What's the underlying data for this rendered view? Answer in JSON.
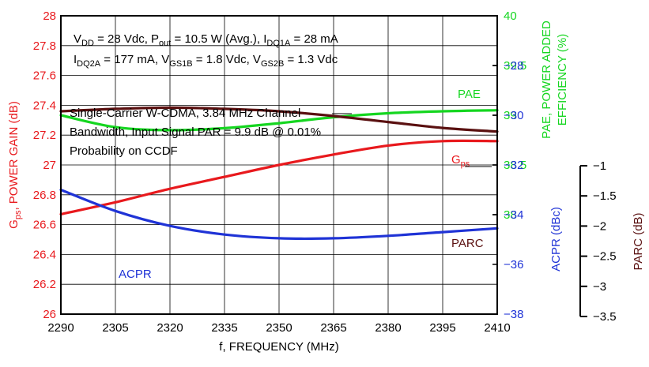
{
  "colors": {
    "gain": "#e8191d",
    "pae": "#15d620",
    "acpr": "#1f33d6",
    "parc": "#5a1010",
    "axis": "#000000",
    "grid": "#000000"
  },
  "chart_data": {
    "type": "line",
    "xlabel": "f, FREQUENCY (MHz)",
    "x_ticks": [
      "2290",
      "2305",
      "2320",
      "2335",
      "2350",
      "2365",
      "2380",
      "2395",
      "2410"
    ],
    "xlim": [
      2290,
      2410
    ],
    "axes": {
      "gain": {
        "label_main": "G",
        "label_sub": "ps",
        "label_rest": ", POWER GAIN (dB)",
        "ylim": [
          26,
          28
        ],
        "ticks": [
          "26",
          "26.2",
          "26.4",
          "26.6",
          "26.8",
          "27",
          "27.2",
          "27.4",
          "27.6",
          "27.8",
          "28"
        ]
      },
      "pae": {
        "label_line1": "PAE, POWER ADDED",
        "label_line2": "EFFICIENCY (%)",
        "ylim": [
          37,
          40
        ],
        "ticks": [
          "38",
          "38.5",
          "39",
          "39.5",
          "40"
        ]
      },
      "acpr": {
        "label": "ACPR (dBc)",
        "ylim": [
          -38,
          -26
        ],
        "ticks": [
          "-38",
          "-36",
          "-34",
          "-32",
          "-30",
          "-28"
        ]
      },
      "parc": {
        "label": "PARC (dB)",
        "ylim": [
          -3.5,
          -1
        ],
        "ticks": [
          "-3.5",
          "-3",
          "-2.5",
          "-2",
          "-1.5",
          "-1"
        ]
      }
    },
    "series": [
      {
        "name": "Gps",
        "axis": "gain",
        "x": [
          2290,
          2305,
          2320,
          2335,
          2350,
          2365,
          2380,
          2395,
          2410
        ],
        "y": [
          26.67,
          26.75,
          26.84,
          26.92,
          27.0,
          27.07,
          27.13,
          27.16,
          27.16
        ]
      },
      {
        "name": "PAE",
        "axis": "pae",
        "x": [
          2290,
          2305,
          2320,
          2335,
          2350,
          2365,
          2380,
          2395,
          2410
        ],
        "y": [
          39.0,
          38.88,
          38.85,
          38.87,
          38.92,
          38.98,
          39.02,
          39.04,
          39.05
        ]
      },
      {
        "name": "ACPR",
        "axis": "acpr",
        "x": [
          2290,
          2305,
          2320,
          2335,
          2350,
          2365,
          2380,
          2395,
          2410
        ],
        "y": [
          -33.0,
          -33.85,
          -34.45,
          -34.8,
          -34.95,
          -34.95,
          -34.85,
          -34.7,
          -34.55
        ]
      },
      {
        "name": "PARC",
        "axis": "parc",
        "x": [
          2290,
          2305,
          2320,
          2335,
          2350,
          2365,
          2380,
          2395,
          2410
        ],
        "y": [
          -1.8,
          -1.78,
          -1.77,
          -1.78,
          -1.8,
          -1.84,
          -1.89,
          -1.94,
          -1.97
        ]
      }
    ],
    "series_labels": {
      "gps_main": "G",
      "gps_sub": "ps",
      "pae": "PAE",
      "acpr": "ACPR",
      "parc": "PARC"
    },
    "annotations": {
      "cond1": [
        {
          "t": "V"
        },
        {
          "t": "DD",
          "sub": true
        },
        {
          "t": " = 28 Vdc, P"
        },
        {
          "t": "out",
          "sub": true
        },
        {
          "t": " = 10.5 W (Avg.), I"
        },
        {
          "t": "DQ1A",
          "sub": true
        },
        {
          "t": " = 28 mA"
        }
      ],
      "cond2": [
        {
          "t": "I"
        },
        {
          "t": "DQ2A",
          "sub": true
        },
        {
          "t": " = 177 mA, V"
        },
        {
          "t": "GS1B",
          "sub": true
        },
        {
          "t": " = 1.8 Vdc, V"
        },
        {
          "t": "GS2B",
          "sub": true
        },
        {
          "t": " = 1.3 Vdc"
        }
      ],
      "signal": [
        "Single-Carrier W-CDMA, 3.84 MHz Channel",
        "Bandwidth, Input Signal PAR = 9.9 dB @ 0.01%",
        "Probability on CCDF"
      ]
    }
  }
}
